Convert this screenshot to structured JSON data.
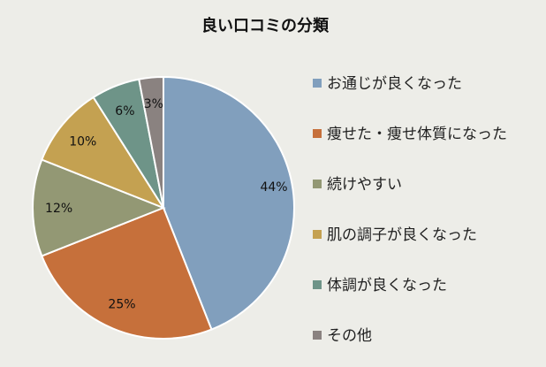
{
  "chart_data": {
    "type": "pie",
    "title": "良い口コミの分類",
    "categories": [
      "お通じが良くなった",
      "痩せた・痩せ体質になった",
      "続けやすい",
      "肌の調子が良くなった",
      "体調が良くなった",
      "その他"
    ],
    "values": [
      44,
      25,
      12,
      10,
      6,
      3
    ],
    "value_labels": [
      "44%",
      "25%",
      "12%",
      "10%",
      "6%",
      "3%"
    ],
    "colors": [
      "#819fbd",
      "#c6703b",
      "#939874",
      "#c4a151",
      "#6e9488",
      "#8a8280"
    ],
    "legend_position": "right"
  }
}
